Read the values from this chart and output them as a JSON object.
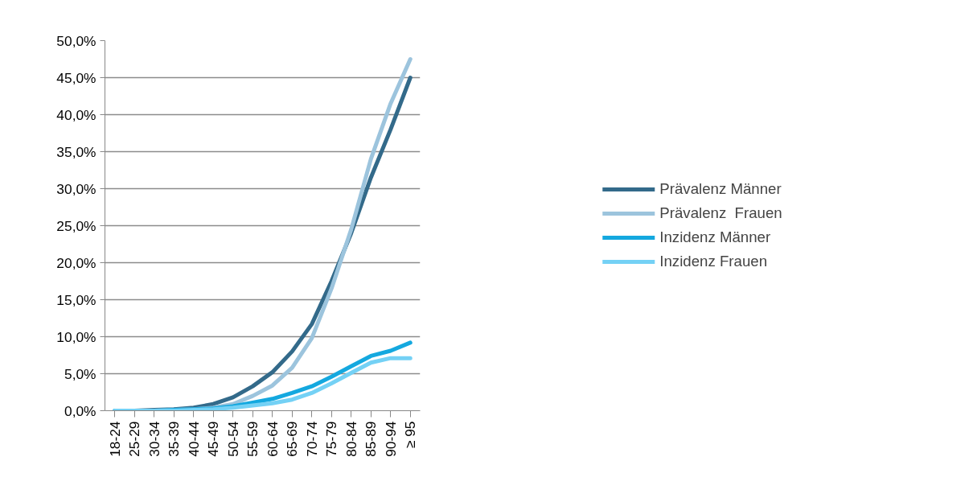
{
  "chart_data": {
    "type": "line",
    "categories": [
      "18-24",
      "25-29",
      "30-34",
      "35-39",
      "40-44",
      "45-49",
      "50-54",
      "55-59",
      "60-64",
      "65-69",
      "70-74",
      "75-79",
      "80-84",
      "85-89",
      "90-94",
      "≥ 95"
    ],
    "series": [
      {
        "name": "Prävalenz Männer",
        "color": "#336a8a",
        "values": [
          0,
          0,
          0.1,
          0.2,
          0.4,
          0.9,
          1.8,
          3.3,
          5.2,
          8.0,
          11.7,
          17.5,
          24.0,
          31.5,
          38.0,
          45.0
        ]
      },
      {
        "name": "Prävalenz  Frauen",
        "color": "#9cc4dd",
        "values": [
          0,
          0,
          0,
          0.1,
          0.2,
          0.4,
          0.9,
          2.0,
          3.4,
          5.8,
          9.8,
          16.5,
          24.5,
          34.0,
          41.5,
          47.5
        ]
      },
      {
        "name": "Inzidenz Männer",
        "color": "#14a8df",
        "values": [
          0,
          0,
          0,
          0.1,
          0.2,
          0.3,
          0.6,
          1.1,
          1.6,
          2.4,
          3.3,
          4.6,
          6.0,
          7.4,
          8.1,
          9.2
        ]
      },
      {
        "name": "Inzidenz Frauen",
        "color": "#74d1f5",
        "values": [
          0,
          0,
          0,
          0,
          0.1,
          0.2,
          0.4,
          0.7,
          1.0,
          1.5,
          2.4,
          3.7,
          5.1,
          6.5,
          7.1,
          7.1
        ]
      }
    ],
    "ylim": [
      0,
      50
    ],
    "yticks": [
      {
        "value": 0,
        "label": "0,0%"
      },
      {
        "value": 5,
        "label": "5,0%"
      },
      {
        "value": 10,
        "label": "10,0%"
      },
      {
        "value": 15,
        "label": "15,0%"
      },
      {
        "value": 20,
        "label": "20,0%"
      },
      {
        "value": 25,
        "label": "25,0%"
      },
      {
        "value": 30,
        "label": "30,0%"
      },
      {
        "value": 35,
        "label": "35,0%"
      },
      {
        "value": 40,
        "label": "40,0%"
      },
      {
        "value": 45,
        "label": "45,0%"
      },
      {
        "value": 50,
        "label": "50,0%"
      }
    ],
    "grid": "y",
    "legend": "right",
    "marker": "none",
    "line_style": "solid"
  }
}
